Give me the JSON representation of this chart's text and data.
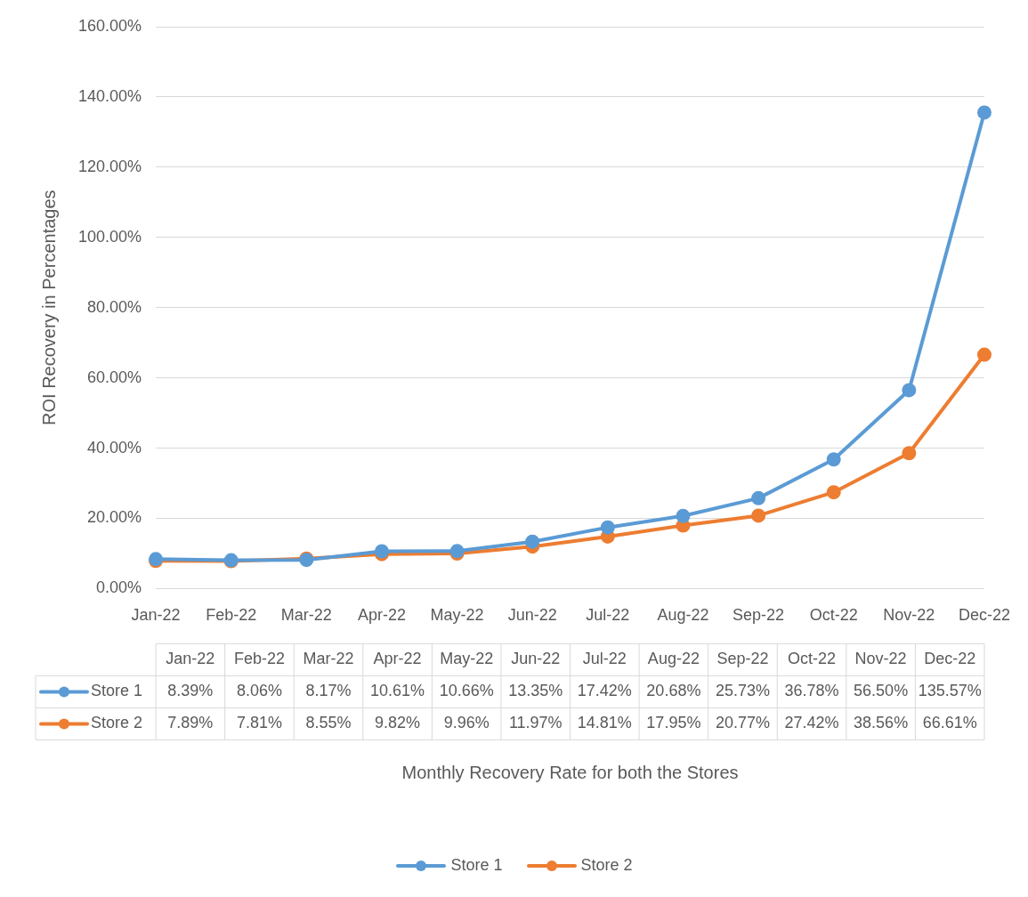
{
  "chart_data": {
    "type": "line",
    "annotations": [
      "Monthly Recovery Rate for both the Stores"
    ],
    "ylabel": "ROI Recovery in Percentages",
    "categories": [
      "Jan-22",
      "Feb-22",
      "Mar-22",
      "Apr-22",
      "May-22",
      "Jun-22",
      "Jul-22",
      "Aug-22",
      "Sep-22",
      "Oct-22",
      "Nov-22",
      "Dec-22"
    ],
    "series": [
      {
        "name": "Store 1",
        "color": "#5b9bd5",
        "values": [
          8.39,
          8.06,
          8.17,
          10.61,
          10.66,
          13.35,
          17.42,
          20.68,
          25.73,
          36.78,
          56.5,
          135.57
        ],
        "value_labels": [
          "8.39%",
          "8.06%",
          "8.17%",
          "10.61%",
          "10.66%",
          "13.35%",
          "17.42%",
          "20.68%",
          "25.73%",
          "36.78%",
          "56.50%",
          "135.57%"
        ]
      },
      {
        "name": "Store 2",
        "color": "#ed7d31",
        "values": [
          7.89,
          7.81,
          8.55,
          9.82,
          9.96,
          11.97,
          14.81,
          17.95,
          20.77,
          27.42,
          38.56,
          66.61
        ],
        "value_labels": [
          "7.89%",
          "7.81%",
          "8.55%",
          "9.82%",
          "9.96%",
          "11.97%",
          "14.81%",
          "17.95%",
          "20.77%",
          "27.42%",
          "38.56%",
          "66.61%"
        ]
      }
    ],
    "ylim": [
      0,
      160
    ],
    "yticks": [
      {
        "value": 0,
        "label": "0.00%"
      },
      {
        "value": 20,
        "label": "20.00%"
      },
      {
        "value": 40,
        "label": "40.00%"
      },
      {
        "value": 60,
        "label": "60.00%"
      },
      {
        "value": 80,
        "label": "80.00%"
      },
      {
        "value": 100,
        "label": "100.00%"
      },
      {
        "value": 120,
        "label": "120.00%"
      },
      {
        "value": 140,
        "label": "140.00%"
      },
      {
        "value": 160,
        "label": "160.00%"
      }
    ],
    "grid": "y",
    "legend": "bottom",
    "marker": "circle",
    "line_style": "solid",
    "data_labels": true
  }
}
